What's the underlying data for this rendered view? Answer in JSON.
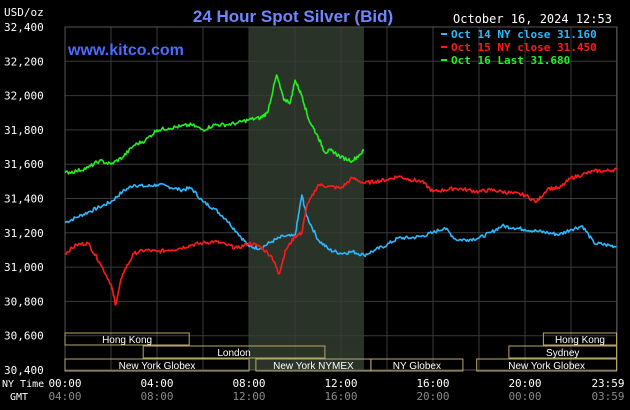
{
  "header": {
    "title": "24 Hour Spot Silver (Bid)",
    "unit": "USD/oz",
    "datetime": "October 16, 2024 12:53",
    "site": "www.kitco.com"
  },
  "colors": {
    "background": "#000000",
    "title": "#6f86ff",
    "site": "#4d6bff",
    "grid": "#3a3a3a",
    "shade": "#2a3327",
    "session_box": "#b9a76a",
    "oct14": "#2bb8ff",
    "oct15": "#ff1a1a",
    "oct16": "#22f022"
  },
  "chart_data": {
    "type": "line",
    "ylim": [
      30400,
      32400
    ],
    "yticks": [
      "32,400",
      "32,200",
      "32,000",
      "31,800",
      "31,600",
      "31,400",
      "31,200",
      "31,000",
      "30,800",
      "30,600",
      "30,400"
    ],
    "xlim": [
      0,
      24
    ],
    "shaded_hours": [
      8.0,
      13.0
    ],
    "ny_time_label": "NY Time",
    "gmt_label": "GMT",
    "xticks_ny": [
      {
        "h": 0,
        "label": "00:00"
      },
      {
        "h": 4,
        "label": "04:00"
      },
      {
        "h": 8,
        "label": "08:00"
      },
      {
        "h": 12,
        "label": "12:00"
      },
      {
        "h": 16,
        "label": "16:00"
      },
      {
        "h": 20,
        "label": "20:00"
      },
      {
        "h": 23.98,
        "label": "23:59"
      }
    ],
    "xticks_gmt": [
      {
        "h": 0,
        "label": "04:00"
      },
      {
        "h": 4,
        "label": "08:00"
      },
      {
        "h": 8,
        "label": "12:00"
      },
      {
        "h": 12,
        "label": "16:00"
      },
      {
        "h": 16,
        "label": "20:00"
      },
      {
        "h": 20,
        "label": "00:00"
      },
      {
        "h": 23.98,
        "label": "03:59"
      }
    ],
    "legend": [
      {
        "label": "Oct 14 NY close 31.160",
        "color_key": "oct14"
      },
      {
        "label": "Oct 15 NY close 31.450",
        "color_key": "oct15"
      },
      {
        "label": "Oct 16 Last 31.680",
        "color_key": "oct16"
      }
    ],
    "sessions": [
      {
        "label": "Hong Kong",
        "start": 0,
        "end": 5.4,
        "row": 0
      },
      {
        "label": "Hong Kong",
        "start": 20.8,
        "end": 23.98,
        "row": 0
      },
      {
        "label": "London",
        "start": 3.4,
        "end": 11.3,
        "row": 1
      },
      {
        "label": "Sydney",
        "start": 19.3,
        "end": 23.98,
        "row": 1
      },
      {
        "label": "New York Globex",
        "start": 0,
        "end": 8.0,
        "row": 2
      },
      {
        "label": "New York NYMEX",
        "start": 8.3,
        "end": 13.3,
        "row": 2
      },
      {
        "label": "NY Globex",
        "start": 13.3,
        "end": 17.3,
        "row": 2
      },
      {
        "label": "New York Globex",
        "start": 17.9,
        "end": 23.98,
        "row": 2
      }
    ],
    "series": [
      {
        "name": "Oct 14",
        "color_key": "oct14",
        "points": [
          [
            0,
            31260
          ],
          [
            0.5,
            31290
          ],
          [
            1,
            31320
          ],
          [
            1.5,
            31350
          ],
          [
            2,
            31380
          ],
          [
            2.5,
            31440
          ],
          [
            3,
            31480
          ],
          [
            3.5,
            31470
          ],
          [
            4,
            31480
          ],
          [
            4.5,
            31470
          ],
          [
            5,
            31450
          ],
          [
            5.5,
            31460
          ],
          [
            6,
            31380
          ],
          [
            6.5,
            31340
          ],
          [
            7,
            31280
          ],
          [
            7.5,
            31200
          ],
          [
            8,
            31120
          ],
          [
            8.5,
            31110
          ],
          [
            9,
            31150
          ],
          [
            9.5,
            31180
          ],
          [
            10,
            31180
          ],
          [
            10.3,
            31420
          ],
          [
            10.5,
            31300
          ],
          [
            11,
            31160
          ],
          [
            11.5,
            31100
          ],
          [
            12,
            31080
          ],
          [
            12.5,
            31090
          ],
          [
            13,
            31070
          ],
          [
            13.5,
            31100
          ],
          [
            14,
            31130
          ],
          [
            14.5,
            31170
          ],
          [
            15,
            31170
          ],
          [
            15.5,
            31180
          ],
          [
            16,
            31200
          ],
          [
            16.5,
            31230
          ],
          [
            17,
            31160
          ],
          [
            17.5,
            31160
          ],
          [
            18,
            31170
          ],
          [
            18.5,
            31200
          ],
          [
            19,
            31240
          ],
          [
            19.5,
            31230
          ],
          [
            20,
            31220
          ],
          [
            20.5,
            31210
          ],
          [
            21,
            31200
          ],
          [
            21.5,
            31190
          ],
          [
            22,
            31220
          ],
          [
            22.5,
            31240
          ],
          [
            23,
            31140
          ],
          [
            23.5,
            31130
          ],
          [
            23.98,
            31120
          ]
        ]
      },
      {
        "name": "Oct 15",
        "color_key": "oct15",
        "points": [
          [
            0,
            31080
          ],
          [
            0.5,
            31130
          ],
          [
            1,
            31140
          ],
          [
            1.5,
            31030
          ],
          [
            2,
            30900
          ],
          [
            2.2,
            30780
          ],
          [
            2.5,
            30960
          ],
          [
            3,
            31080
          ],
          [
            3.5,
            31100
          ],
          [
            4,
            31090
          ],
          [
            4.5,
            31100
          ],
          [
            5,
            31110
          ],
          [
            5.5,
            31130
          ],
          [
            6,
            31140
          ],
          [
            6.5,
            31150
          ],
          [
            7,
            31130
          ],
          [
            7.5,
            31110
          ],
          [
            8,
            31140
          ],
          [
            8.5,
            31120
          ],
          [
            9,
            31060
          ],
          [
            9.3,
            30960
          ],
          [
            9.6,
            31100
          ],
          [
            10,
            31180
          ],
          [
            10.3,
            31200
          ],
          [
            10.5,
            31350
          ],
          [
            11,
            31480
          ],
          [
            11.5,
            31470
          ],
          [
            12,
            31460
          ],
          [
            12.5,
            31520
          ],
          [
            13,
            31490
          ],
          [
            13.5,
            31500
          ],
          [
            14,
            31510
          ],
          [
            14.5,
            31530
          ],
          [
            15,
            31510
          ],
          [
            15.5,
            31500
          ],
          [
            16,
            31440
          ],
          [
            16.5,
            31450
          ],
          [
            17,
            31460
          ],
          [
            17.5,
            31450
          ],
          [
            18,
            31440
          ],
          [
            18.5,
            31450
          ],
          [
            19,
            31440
          ],
          [
            19.5,
            31430
          ],
          [
            20,
            31420
          ],
          [
            20.5,
            31380
          ],
          [
            21,
            31460
          ],
          [
            21.5,
            31460
          ],
          [
            22,
            31520
          ],
          [
            22.5,
            31540
          ],
          [
            23,
            31560
          ],
          [
            23.5,
            31560
          ],
          [
            23.98,
            31570
          ]
        ]
      },
      {
        "name": "Oct 16",
        "color_key": "oct16",
        "points": [
          [
            0,
            31550
          ],
          [
            0.5,
            31560
          ],
          [
            1,
            31580
          ],
          [
            1.5,
            31620
          ],
          [
            2,
            31600
          ],
          [
            2.5,
            31640
          ],
          [
            3,
            31710
          ],
          [
            3.5,
            31740
          ],
          [
            4,
            31800
          ],
          [
            4.5,
            31810
          ],
          [
            5,
            31820
          ],
          [
            5.5,
            31830
          ],
          [
            6,
            31800
          ],
          [
            6.5,
            31830
          ],
          [
            7,
            31830
          ],
          [
            7.5,
            31840
          ],
          [
            8,
            31860
          ],
          [
            8.5,
            31870
          ],
          [
            8.8,
            31900
          ],
          [
            9.2,
            32120
          ],
          [
            9.5,
            31980
          ],
          [
            9.8,
            31960
          ],
          [
            10,
            32090
          ],
          [
            10.3,
            32000
          ],
          [
            10.6,
            31860
          ],
          [
            11,
            31760
          ],
          [
            11.3,
            31670
          ],
          [
            11.6,
            31680
          ],
          [
            12,
            31640
          ],
          [
            12.5,
            31620
          ],
          [
            13,
            31680
          ]
        ]
      }
    ]
  }
}
